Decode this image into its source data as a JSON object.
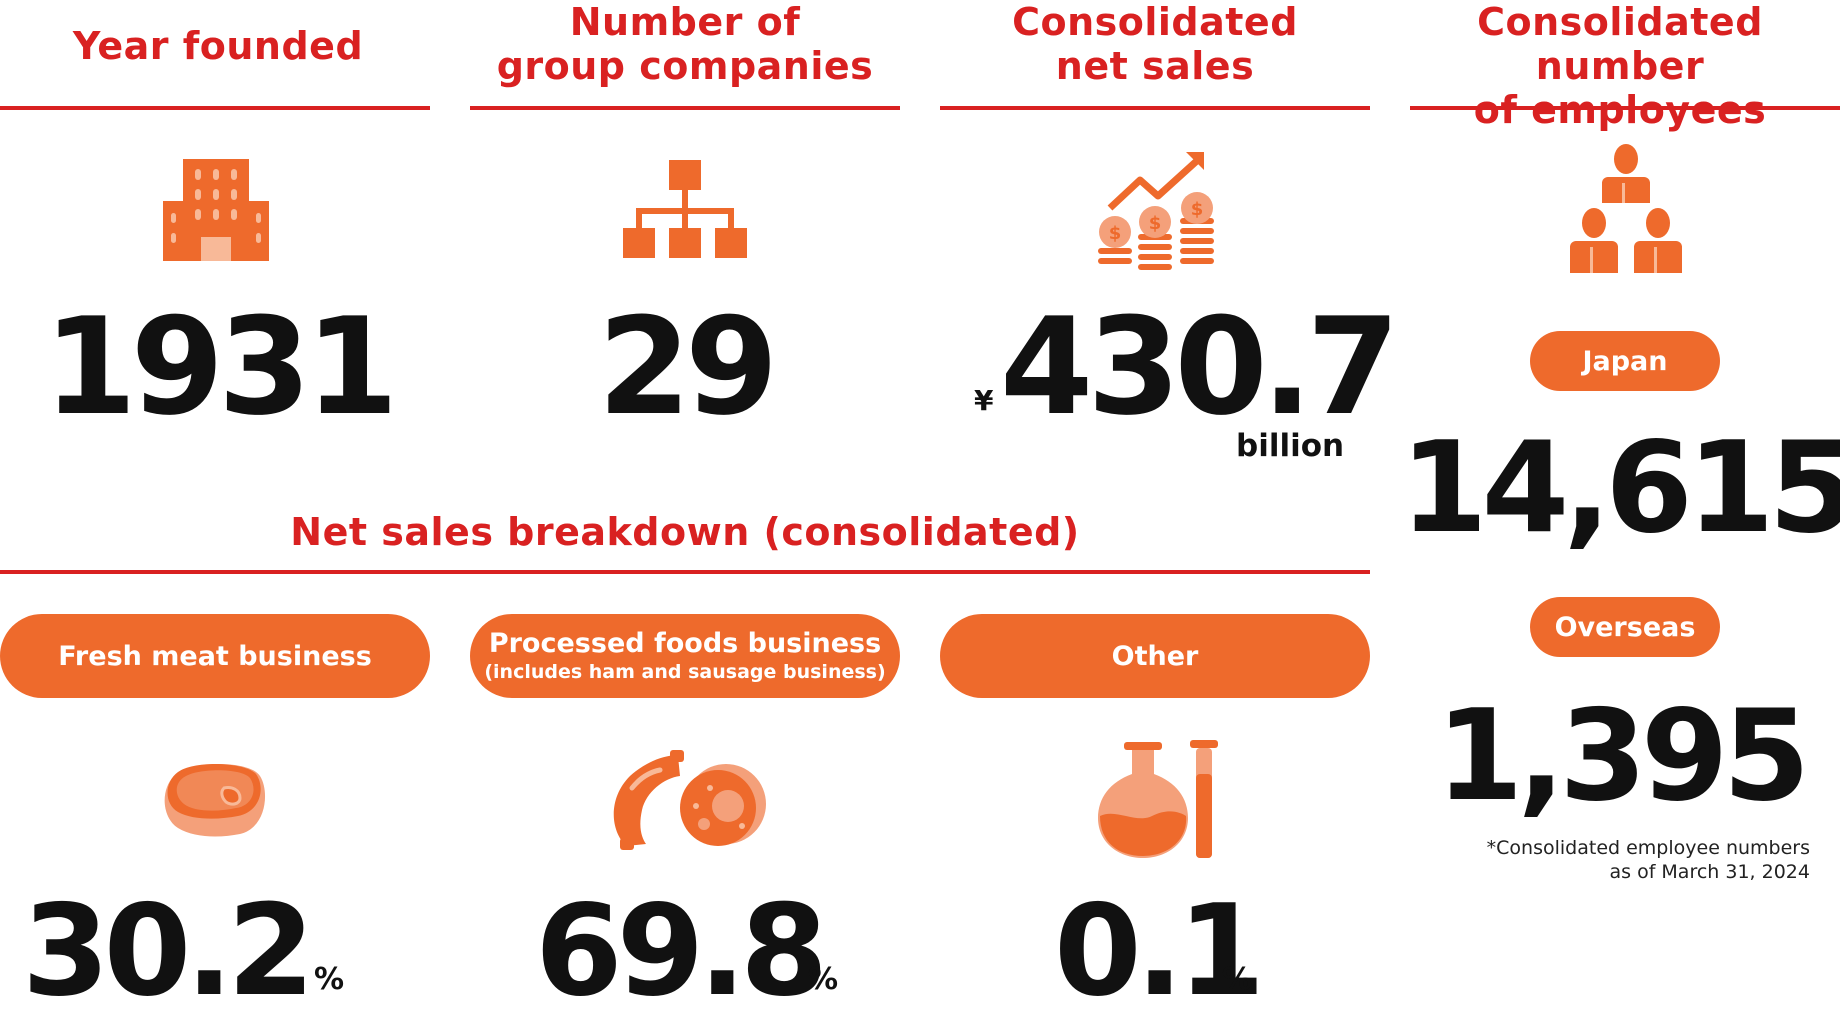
{
  "colors": {
    "heading": "#d92121",
    "accent": "#ee6a2c",
    "light_accent": "#f4a07a"
  },
  "stats": {
    "year_founded": {
      "label": "Year founded",
      "value": "1931",
      "icon": "building-icon"
    },
    "group_companies": {
      "label_line1": "Number of",
      "label_line2": "group companies",
      "value": "29",
      "icon": "org-chart-icon"
    },
    "net_sales": {
      "label_line1": "Consolidated",
      "label_line2": "net sales",
      "currency": "¥",
      "value": "430.7",
      "unit": "billion",
      "icon": "growth-coins-icon"
    },
    "employees": {
      "label_line1": "Consolidated number",
      "label_line2": "of employees",
      "icon": "people-group-icon",
      "japan_label": "Japan",
      "japan_value": "14,615",
      "overseas_label": "Overseas",
      "overseas_value": "1,395",
      "note_line1": "*Consolidated employee numbers",
      "note_line2": "as of March 31, 2024"
    }
  },
  "breakdown": {
    "title": "Net sales breakdown (consolidated)",
    "segments": [
      {
        "label": "Fresh meat business",
        "sublabel": "",
        "value": "30.2",
        "unit": "%",
        "icon": "meat-steak-icon"
      },
      {
        "label": "Processed foods business",
        "sublabel": "(includes ham and sausage business)",
        "value": "69.8",
        "unit": "%",
        "icon": "sausage-ham-icon"
      },
      {
        "label": "Other",
        "sublabel": "",
        "value": "0.1",
        "unit": "%",
        "icon": "flask-test-tube-icon"
      }
    ]
  }
}
